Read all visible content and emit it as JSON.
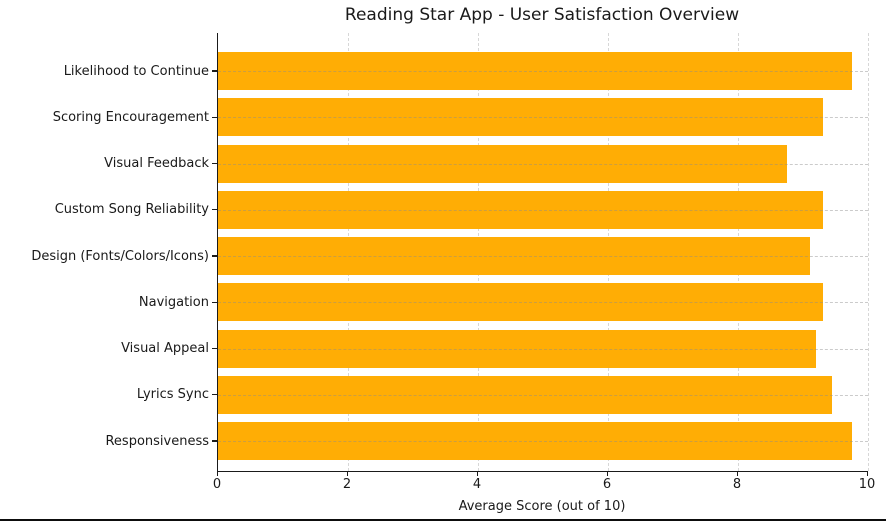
{
  "chart_data": {
    "type": "bar",
    "orientation": "horizontal",
    "title": "Reading Star App - User Satisfaction Overview",
    "xlabel": "Average Score (out of 10)",
    "ylabel": "",
    "categories": [
      "Likelihood to Continue",
      "Scoring Encouragement",
      "Visual Feedback",
      "Custom Song Reliability",
      "Design (Fonts/Colors/Icons)",
      "Navigation",
      "Visual Appeal",
      "Lyrics Sync",
      "Responsiveness"
    ],
    "values": [
      9.75,
      9.3,
      8.75,
      9.3,
      9.1,
      9.3,
      9.2,
      9.45,
      9.75
    ],
    "xlim": [
      0,
      10
    ],
    "xticks": [
      0,
      2,
      4,
      6,
      8,
      10
    ],
    "grid": "dashed-both-axes",
    "legend_position": "none",
    "colors": {
      "bar": "#FFAD05",
      "grid": "#c9c9c9",
      "axis": "#1a1a1a",
      "background": "#ffffff"
    }
  }
}
